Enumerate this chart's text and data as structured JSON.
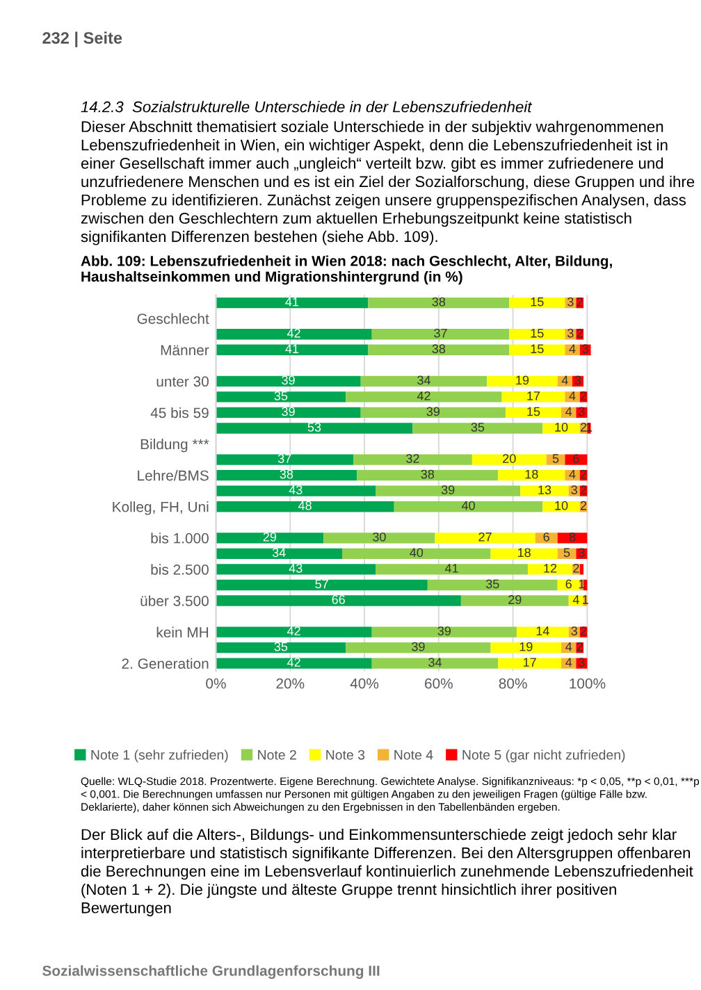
{
  "chart_data": {
    "type": "bar",
    "orientation": "horizontal",
    "stacked": true,
    "title": "Abb. 109: Lebenszufriedenheit in Wien 2018: nach Geschlecht, Alter, Bildung, Haushaltseinkommen und Migrationshintergrund (in %)",
    "categories": [
      null,
      "Geschlecht",
      null,
      "Männer",
      null,
      "unter 30",
      null,
      "45 bis 59",
      null,
      "Bildung ***",
      null,
      "Lehre/BMS",
      null,
      "Kolleg, FH, Uni",
      null,
      "bis 1.000",
      null,
      "bis 2.500",
      null,
      "über 3.500",
      null,
      "kein MH",
      null,
      "2. Generation"
    ],
    "series": [
      {
        "name": "Note 1 (sehr zufrieden)",
        "color": "#00a651",
        "values": [
          41,
          null,
          42,
          41,
          null,
          39,
          35,
          39,
          53,
          null,
          37,
          38,
          43,
          48,
          null,
          29,
          34,
          43,
          57,
          66,
          null,
          42,
          35,
          42
        ]
      },
      {
        "name": "Note 2",
        "color": "#92d050",
        "values": [
          38,
          null,
          37,
          38,
          null,
          34,
          42,
          39,
          35,
          null,
          32,
          38,
          39,
          40,
          null,
          30,
          40,
          41,
          35,
          29,
          null,
          39,
          39,
          34
        ]
      },
      {
        "name": "Note 3",
        "color": "#ffff00",
        "values": [
          15,
          null,
          15,
          15,
          null,
          19,
          17,
          15,
          10,
          null,
          20,
          18,
          13,
          10,
          null,
          27,
          18,
          12,
          6,
          4,
          null,
          14,
          19,
          17
        ]
      },
      {
        "name": "Note 4",
        "color": "#f5b335",
        "values": [
          3,
          null,
          3,
          4,
          null,
          4,
          4,
          4,
          2,
          null,
          5,
          4,
          3,
          2,
          null,
          6,
          5,
          2,
          1,
          1,
          null,
          3,
          4,
          4
        ]
      },
      {
        "name": "Note 5 (gar nicht zufrieden)",
        "color": "#ff0000",
        "values": [
          2,
          null,
          2,
          3,
          null,
          3,
          2,
          3,
          1,
          null,
          6,
          2,
          2,
          null,
          null,
          8,
          3,
          1,
          1,
          null,
          null,
          2,
          2,
          3
        ],
        "value_labels": [
          "2",
          null,
          "2",
          "3",
          null,
          "3",
          "2",
          "3",
          "1",
          null,
          "6",
          "2",
          "2",
          null,
          null,
          "8",
          "3",
          null,
          null,
          null,
          null,
          "2",
          "2",
          "3"
        ]
      }
    ],
    "xlim": [
      0,
      101
    ],
    "xticks": [
      {
        "value": 0,
        "label": "0%"
      },
      {
        "value": 20,
        "label": "20%"
      },
      {
        "value": 40,
        "label": "40%"
      },
      {
        "value": 60,
        "label": "60%"
      },
      {
        "value": 80,
        "label": "80%"
      },
      {
        "value": 100,
        "label": "100%"
      }
    ],
    "grid": "x",
    "legend": "bottom",
    "data_labels": true,
    "annotations": [
      "232 | Seite",
      "14.2.3  Sozialstrukturelle Unterschiede in der Lebenszufriedenheit",
      "Dieser Abschnitt thematisiert soziale Unterschiede in der subjektiv wahrgenommenen Lebenszufriedenheit in Wien, ein wichtiger Aspekt, denn die Lebenszufriedenheit ist in einer Gesellschaft immer auch „ungleich“ verteilt bzw. gibt es immer zufriedenere und unzufriedenere Menschen und es ist ein Ziel der Sozialforschung, diese Gruppen und ihre Probleme zu identifizieren. Zunächst zeigen unsere gruppenspezifischen Analysen, dass zwischen den Geschlechtern zum aktuellen Erhebungszeitpunkt keine statistisch signifikanten Differenzen bestehen (siehe Abb. 109).",
      "Quelle: WLQ-Studie 2018. Prozentwerte. Eigene Berechnung. Gewichtete Analyse. Signifikanzniveaus: *p < 0,05, **p < 0,01, ***p < 0,001. Die Berechnungen umfassen nur Personen mit gültigen Angaben zu den jeweiligen Fragen (gültige Fälle bzw. Deklarierte), daher können sich Abweichungen zu den Ergebnissen in den Tabellenbänden ergeben.",
      "Der Blick auf die Alters-, Bildungs- und Einkommensunterschiede zeigt jedoch sehr klar interpretierbare und statistisch signifikante Differenzen. Bei den Altersgruppen offenbaren die Berechnungen eine im Lebensverlauf kontinuierlich zunehmende Lebenszufriedenheit (Noten 1 + 2). Die jüngste und älteste Gruppe trennt hinsichtlich ihrer positiven Bewertungen",
      "Sozialwissenschaftliche Grundlagenforschung III"
    ]
  }
}
